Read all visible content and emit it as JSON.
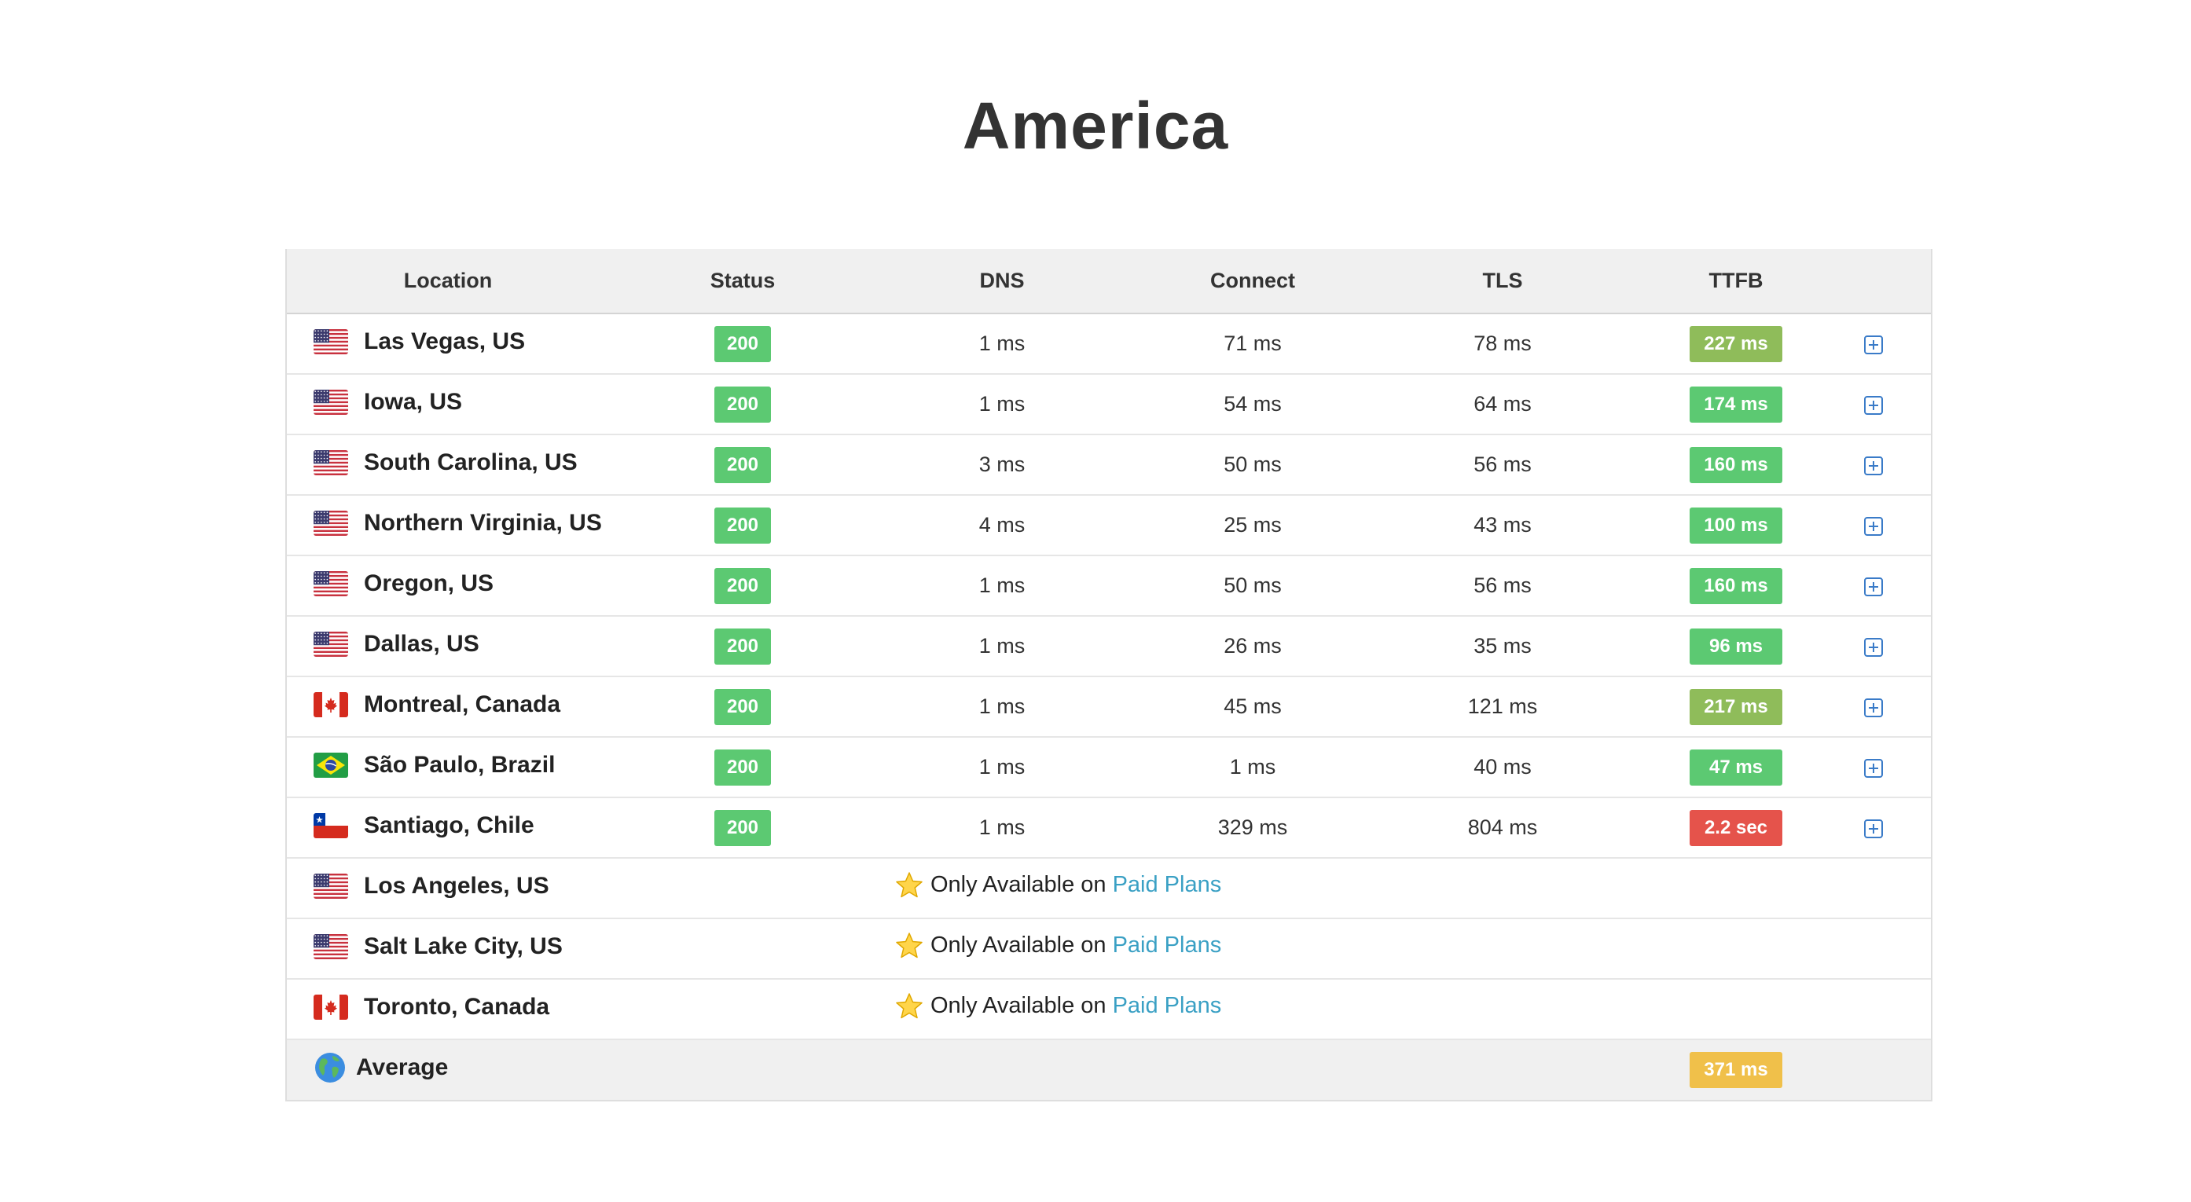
{
  "page": {
    "title": "America"
  },
  "table": {
    "headers": {
      "location": "Location",
      "status": "Status",
      "dns": "DNS",
      "connect": "Connect",
      "tls": "TLS",
      "ttfb": "TTFB"
    },
    "rows": [
      {
        "flag": "us",
        "location": "Las Vegas, US",
        "status": "200",
        "dns": "1 ms",
        "connect": "71 ms",
        "tls": "78 ms",
        "ttfb": "227 ms",
        "ttfb_color": "#8fbc5a"
      },
      {
        "flag": "us",
        "location": "Iowa, US",
        "status": "200",
        "dns": "1 ms",
        "connect": "54 ms",
        "tls": "64 ms",
        "ttfb": "174 ms",
        "ttfb_color": "#5cc972"
      },
      {
        "flag": "us",
        "location": "South Carolina, US",
        "status": "200",
        "dns": "3 ms",
        "connect": "50 ms",
        "tls": "56 ms",
        "ttfb": "160 ms",
        "ttfb_color": "#5cc972"
      },
      {
        "flag": "us",
        "location": "Northern Virginia, US",
        "status": "200",
        "dns": "4 ms",
        "connect": "25 ms",
        "tls": "43 ms",
        "ttfb": "100 ms",
        "ttfb_color": "#5cc972"
      },
      {
        "flag": "us",
        "location": "Oregon, US",
        "status": "200",
        "dns": "1 ms",
        "connect": "50 ms",
        "tls": "56 ms",
        "ttfb": "160 ms",
        "ttfb_color": "#5cc972"
      },
      {
        "flag": "us",
        "location": "Dallas, US",
        "status": "200",
        "dns": "1 ms",
        "connect": "26 ms",
        "tls": "35 ms",
        "ttfb": "96 ms",
        "ttfb_color": "#5cc972"
      },
      {
        "flag": "ca",
        "location": "Montreal, Canada",
        "status": "200",
        "dns": "1 ms",
        "connect": "45 ms",
        "tls": "121 ms",
        "ttfb": "217 ms",
        "ttfb_color": "#8fbc5a"
      },
      {
        "flag": "br",
        "location": "São Paulo, Brazil",
        "status": "200",
        "dns": "1 ms",
        "connect": "1 ms",
        "tls": "40 ms",
        "ttfb": "47 ms",
        "ttfb_color": "#5cc972"
      },
      {
        "flag": "cl",
        "location": "Santiago, Chile",
        "status": "200",
        "dns": "1 ms",
        "connect": "329 ms",
        "tls": "804 ms",
        "ttfb": "2.2 sec",
        "ttfb_color": "#e5534b"
      }
    ],
    "paid_rows": [
      {
        "flag": "us",
        "location": "Los Angeles, US"
      },
      {
        "flag": "us",
        "location": "Salt Lake City, US"
      },
      {
        "flag": "ca",
        "location": "Toronto, Canada"
      }
    ],
    "paid_text": "Only Available on",
    "paid_link": "Paid Plans",
    "average": {
      "label": "Average",
      "ttfb": "371 ms",
      "ttfb_color": "#f0c04a"
    }
  },
  "colors": {
    "status_ok": "#5cc972",
    "link": "#3aa0c4",
    "expand_icon": "#3a7bc8"
  },
  "icons": {
    "expand": "plus-square-icon",
    "paid": "star-icon",
    "average": "globe-icon"
  }
}
